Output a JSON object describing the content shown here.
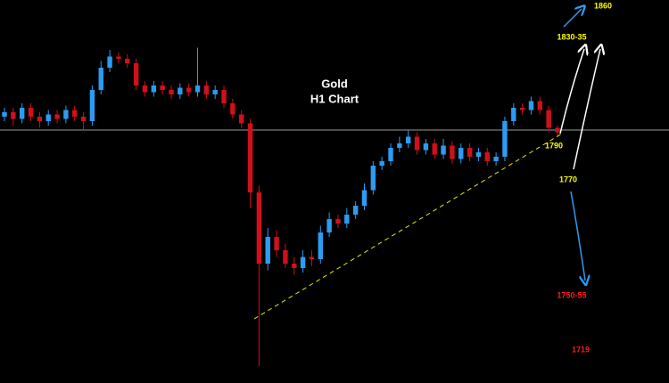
{
  "chart_data": {
    "type": "candlestick",
    "title": "Gold",
    "subtitle": "H1 Chart",
    "up_color": "#2b9cf2",
    "down_color": "#d0101a",
    "ylim": [
      1676.4,
      1848.4
    ],
    "level": 1790,
    "open": [
      1796,
      1798,
      1795,
      1800,
      1796,
      1794,
      1797,
      1795,
      1799,
      1796,
      1794,
      1808,
      1818,
      1823,
      1822,
      1820,
      1810,
      1807,
      1810,
      1808,
      1806,
      1809,
      1807,
      1810,
      1806,
      1808,
      1802,
      1797,
      1793,
      1762,
      1730,
      1742,
      1736,
      1730,
      1728,
      1733,
      1732,
      1744,
      1750,
      1748,
      1752,
      1756,
      1763,
      1774,
      1776,
      1782,
      1784,
      1787,
      1781,
      1784,
      1779,
      1783,
      1777,
      1782,
      1778,
      1780,
      1776,
      1778,
      1794,
      1800,
      1799,
      1803,
      1799,
      1791
    ],
    "high": [
      1800,
      1800,
      1802,
      1802,
      1798,
      1799,
      1799,
      1801,
      1801,
      1798,
      1810,
      1821,
      1826,
      1825,
      1824,
      1822,
      1812,
      1812,
      1812,
      1810,
      1811,
      1811,
      1827,
      1812,
      1810,
      1810,
      1804,
      1799,
      1795,
      1765,
      1746,
      1745,
      1739,
      1733,
      1736,
      1736,
      1747,
      1753,
      1752,
      1755,
      1758,
      1766,
      1776,
      1778,
      1784,
      1787,
      1790,
      1789,
      1786,
      1786,
      1786,
      1785,
      1784,
      1784,
      1782,
      1782,
      1780,
      1796,
      1802,
      1802,
      1805,
      1805,
      1801,
      1792
    ],
    "low": [
      1794,
      1792,
      1793,
      1794,
      1791,
      1792,
      1793,
      1793,
      1794,
      1790,
      1792,
      1806,
      1816,
      1820,
      1818,
      1808,
      1805,
      1805,
      1806,
      1804,
      1804,
      1805,
      1805,
      1804,
      1804,
      1800,
      1795,
      1791,
      1755,
      1684,
      1727,
      1733,
      1728,
      1725,
      1726,
      1729,
      1730,
      1742,
      1746,
      1746,
      1750,
      1754,
      1761,
      1772,
      1774,
      1780,
      1782,
      1779,
      1779,
      1777,
      1777,
      1775,
      1775,
      1776,
      1776,
      1774,
      1774,
      1776,
      1792,
      1797,
      1797,
      1797,
      1789,
      1787
    ],
    "close": [
      1798,
      1795,
      1800,
      1796,
      1794,
      1797,
      1795,
      1799,
      1796,
      1794,
      1808,
      1818,
      1823,
      1822,
      1820,
      1810,
      1807,
      1810,
      1808,
      1806,
      1809,
      1807,
      1810,
      1806,
      1808,
      1802,
      1797,
      1793,
      1762,
      1730,
      1742,
      1736,
      1730,
      1728,
      1733,
      1732,
      1744,
      1750,
      1748,
      1752,
      1756,
      1763,
      1774,
      1776,
      1782,
      1784,
      1787,
      1781,
      1784,
      1779,
      1783,
      1777,
      1782,
      1778,
      1780,
      1776,
      1778,
      1794,
      1800,
      1799,
      1803,
      1799,
      1791,
      1789
    ],
    "annotations": [
      {
        "text": "1860",
        "color": "#ffff00"
      },
      {
        "text": "1830-35",
        "color": "#ffff00"
      },
      {
        "text": "1790",
        "color": "#ffff00"
      },
      {
        "text": "1770",
        "color": "#ffff00"
      },
      {
        "text": "1750-55",
        "color": "#ff1a1a"
      },
      {
        "text": "1719",
        "color": "#ff1a1a"
      }
    ]
  }
}
